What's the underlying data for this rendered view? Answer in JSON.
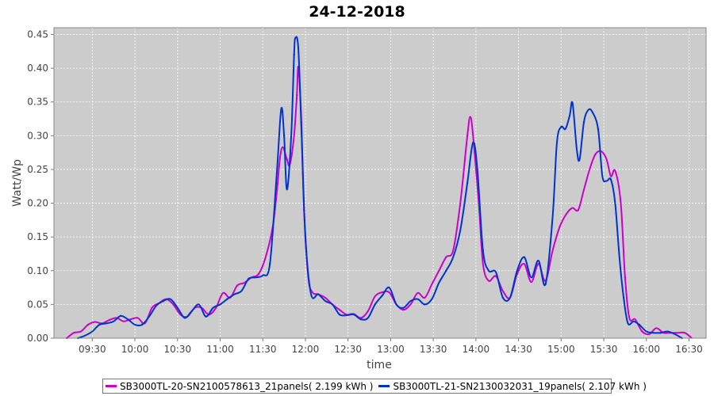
{
  "chart_data": {
    "type": "line",
    "title": "24-12-2018",
    "xlabel": "time",
    "ylabel": "Watt/Wp",
    "xlim": [
      "09:03",
      "16:42"
    ],
    "ylim": [
      0,
      0.46
    ],
    "x_ticks": [
      "09:30",
      "10:00",
      "10:30",
      "11:00",
      "11:30",
      "12:00",
      "12:30",
      "13:00",
      "13:30",
      "14:00",
      "14:30",
      "15:00",
      "15:30",
      "16:00",
      "16:30"
    ],
    "y_ticks": [
      "0.00",
      "0.05",
      "0.10",
      "0.15",
      "0.20",
      "0.25",
      "0.30",
      "0.35",
      "0.40",
      "0.45"
    ],
    "grid": true,
    "legend_position": "bottom",
    "background_color": "#cccccc",
    "series": [
      {
        "name": "SB3000TL-20-SN2100578613_21panels( 2.199 kWh )",
        "color": "#cc00cc",
        "points": [
          [
            "09:12",
            0.0
          ],
          [
            "09:17",
            0.008
          ],
          [
            "09:22",
            0.01
          ],
          [
            "09:27",
            0.02
          ],
          [
            "09:32",
            0.024
          ],
          [
            "09:37",
            0.022
          ],
          [
            "09:42",
            0.027
          ],
          [
            "09:47",
            0.03
          ],
          [
            "09:52",
            0.025
          ],
          [
            "09:57",
            0.028
          ],
          [
            "10:02",
            0.03
          ],
          [
            "10:07",
            0.022
          ],
          [
            "10:12",
            0.045
          ],
          [
            "10:17",
            0.052
          ],
          [
            "10:22",
            0.058
          ],
          [
            "10:27",
            0.05
          ],
          [
            "10:32",
            0.035
          ],
          [
            "10:37",
            0.032
          ],
          [
            "10:42",
            0.045
          ],
          [
            "10:47",
            0.045
          ],
          [
            "10:52",
            0.035
          ],
          [
            "10:57",
            0.045
          ],
          [
            "11:02",
            0.067
          ],
          [
            "11:07",
            0.06
          ],
          [
            "11:12",
            0.078
          ],
          [
            "11:17",
            0.082
          ],
          [
            "11:22",
            0.09
          ],
          [
            "11:27",
            0.095
          ],
          [
            "11:32",
            0.12
          ],
          [
            "11:37",
            0.165
          ],
          [
            "11:40",
            0.22
          ],
          [
            "11:42",
            0.265
          ],
          [
            "11:44",
            0.283
          ],
          [
            "11:47",
            0.265
          ],
          [
            "11:49",
            0.257
          ],
          [
            "11:52",
            0.3
          ],
          [
            "11:54",
            0.36
          ],
          [
            "11:55",
            0.402
          ],
          [
            "11:57",
            0.33
          ],
          [
            "11:59",
            0.19
          ],
          [
            "12:02",
            0.09
          ],
          [
            "12:05",
            0.068
          ],
          [
            "12:09",
            0.065
          ],
          [
            "12:14",
            0.06
          ],
          [
            "12:19",
            0.05
          ],
          [
            "12:24",
            0.042
          ],
          [
            "12:29",
            0.035
          ],
          [
            "12:34",
            0.036
          ],
          [
            "12:39",
            0.03
          ],
          [
            "12:44",
            0.04
          ],
          [
            "12:49",
            0.062
          ],
          [
            "12:54",
            0.068
          ],
          [
            "12:59",
            0.068
          ],
          [
            "13:04",
            0.05
          ],
          [
            "13:09",
            0.042
          ],
          [
            "13:14",
            0.05
          ],
          [
            "13:19",
            0.067
          ],
          [
            "13:24",
            0.06
          ],
          [
            "13:29",
            0.08
          ],
          [
            "13:34",
            0.1
          ],
          [
            "13:39",
            0.12
          ],
          [
            "13:44",
            0.13
          ],
          [
            "13:49",
            0.2
          ],
          [
            "13:54",
            0.3
          ],
          [
            "13:56",
            0.328
          ],
          [
            "13:58",
            0.3
          ],
          [
            "14:02",
            0.2
          ],
          [
            "14:05",
            0.11
          ],
          [
            "14:09",
            0.085
          ],
          [
            "14:14",
            0.092
          ],
          [
            "14:19",
            0.07
          ],
          [
            "14:24",
            0.06
          ],
          [
            "14:29",
            0.095
          ],
          [
            "14:34",
            0.11
          ],
          [
            "14:39",
            0.083
          ],
          [
            "14:44",
            0.11
          ],
          [
            "14:49",
            0.085
          ],
          [
            "14:54",
            0.13
          ],
          [
            "14:59",
            0.165
          ],
          [
            "15:04",
            0.185
          ],
          [
            "15:08",
            0.193
          ],
          [
            "15:12",
            0.19
          ],
          [
            "15:16",
            0.22
          ],
          [
            "15:20",
            0.25
          ],
          [
            "15:24",
            0.272
          ],
          [
            "15:28",
            0.277
          ],
          [
            "15:32",
            0.265
          ],
          [
            "15:35",
            0.24
          ],
          [
            "15:38",
            0.248
          ],
          [
            "15:42",
            0.2
          ],
          [
            "15:45",
            0.09
          ],
          [
            "15:48",
            0.03
          ],
          [
            "15:52",
            0.028
          ],
          [
            "15:57",
            0.01
          ],
          [
            "16:02",
            0.006
          ],
          [
            "16:07",
            0.015
          ],
          [
            "16:12",
            0.008
          ],
          [
            "16:17",
            0.008
          ],
          [
            "16:22",
            0.008
          ],
          [
            "16:27",
            0.008
          ],
          [
            "16:32",
            0.0
          ]
        ]
      },
      {
        "name": "SB3000TL-21-SN2130032031_19panels( 2.107 kWh )",
        "color": "#0033cc",
        "points": [
          [
            "09:20",
            0.0
          ],
          [
            "09:25",
            0.004
          ],
          [
            "09:30",
            0.01
          ],
          [
            "09:35",
            0.02
          ],
          [
            "09:40",
            0.022
          ],
          [
            "09:45",
            0.025
          ],
          [
            "09:50",
            0.033
          ],
          [
            "09:55",
            0.028
          ],
          [
            "10:00",
            0.02
          ],
          [
            "10:05",
            0.02
          ],
          [
            "10:10",
            0.032
          ],
          [
            "10:15",
            0.048
          ],
          [
            "10:20",
            0.055
          ],
          [
            "10:25",
            0.058
          ],
          [
            "10:30",
            0.045
          ],
          [
            "10:35",
            0.03
          ],
          [
            "10:40",
            0.04
          ],
          [
            "10:45",
            0.05
          ],
          [
            "10:50",
            0.032
          ],
          [
            "10:55",
            0.045
          ],
          [
            "11:00",
            0.05
          ],
          [
            "11:05",
            0.058
          ],
          [
            "11:10",
            0.065
          ],
          [
            "11:15",
            0.07
          ],
          [
            "11:20",
            0.088
          ],
          [
            "11:25",
            0.09
          ],
          [
            "11:30",
            0.093
          ],
          [
            "11:35",
            0.11
          ],
          [
            "11:40",
            0.25
          ],
          [
            "11:43",
            0.34
          ],
          [
            "11:45",
            0.3
          ],
          [
            "11:47",
            0.22
          ],
          [
            "11:50",
            0.3
          ],
          [
            "11:52",
            0.42
          ],
          [
            "11:53",
            0.445
          ],
          [
            "11:55",
            0.43
          ],
          [
            "11:57",
            0.32
          ],
          [
            "12:00",
            0.15
          ],
          [
            "12:04",
            0.065
          ],
          [
            "12:09",
            0.065
          ],
          [
            "12:14",
            0.055
          ],
          [
            "12:19",
            0.05
          ],
          [
            "12:24",
            0.035
          ],
          [
            "12:29",
            0.034
          ],
          [
            "12:34",
            0.035
          ],
          [
            "12:39",
            0.028
          ],
          [
            "12:44",
            0.03
          ],
          [
            "12:49",
            0.05
          ],
          [
            "12:54",
            0.063
          ],
          [
            "12:59",
            0.075
          ],
          [
            "13:04",
            0.05
          ],
          [
            "13:09",
            0.045
          ],
          [
            "13:14",
            0.055
          ],
          [
            "13:19",
            0.058
          ],
          [
            "13:24",
            0.05
          ],
          [
            "13:29",
            0.058
          ],
          [
            "13:34",
            0.082
          ],
          [
            "13:39",
            0.1
          ],
          [
            "13:44",
            0.12
          ],
          [
            "13:49",
            0.16
          ],
          [
            "13:54",
            0.23
          ],
          [
            "13:58",
            0.29
          ],
          [
            "14:01",
            0.25
          ],
          [
            "14:05",
            0.13
          ],
          [
            "14:09",
            0.1
          ],
          [
            "14:14",
            0.098
          ],
          [
            "14:19",
            0.06
          ],
          [
            "14:24",
            0.06
          ],
          [
            "14:29",
            0.1
          ],
          [
            "14:34",
            0.12
          ],
          [
            "14:39",
            0.09
          ],
          [
            "14:44",
            0.115
          ],
          [
            "14:49",
            0.08
          ],
          [
            "14:54",
            0.18
          ],
          [
            "14:57",
            0.29
          ],
          [
            "15:00",
            0.313
          ],
          [
            "15:03",
            0.31
          ],
          [
            "15:06",
            0.33
          ],
          [
            "15:08",
            0.348
          ],
          [
            "15:11",
            0.28
          ],
          [
            "15:13",
            0.265
          ],
          [
            "15:16",
            0.32
          ],
          [
            "15:19",
            0.338
          ],
          [
            "15:22",
            0.335
          ],
          [
            "15:26",
            0.31
          ],
          [
            "15:29",
            0.24
          ],
          [
            "15:32",
            0.233
          ],
          [
            "15:35",
            0.235
          ],
          [
            "15:38",
            0.2
          ],
          [
            "15:41",
            0.12
          ],
          [
            "15:44",
            0.06
          ],
          [
            "15:47",
            0.022
          ],
          [
            "15:51",
            0.025
          ],
          [
            "15:55",
            0.02
          ],
          [
            "16:00",
            0.01
          ],
          [
            "16:05",
            0.008
          ],
          [
            "16:10",
            0.008
          ],
          [
            "16:15",
            0.01
          ],
          [
            "16:20",
            0.006
          ],
          [
            "16:25",
            0.0
          ]
        ]
      }
    ]
  }
}
